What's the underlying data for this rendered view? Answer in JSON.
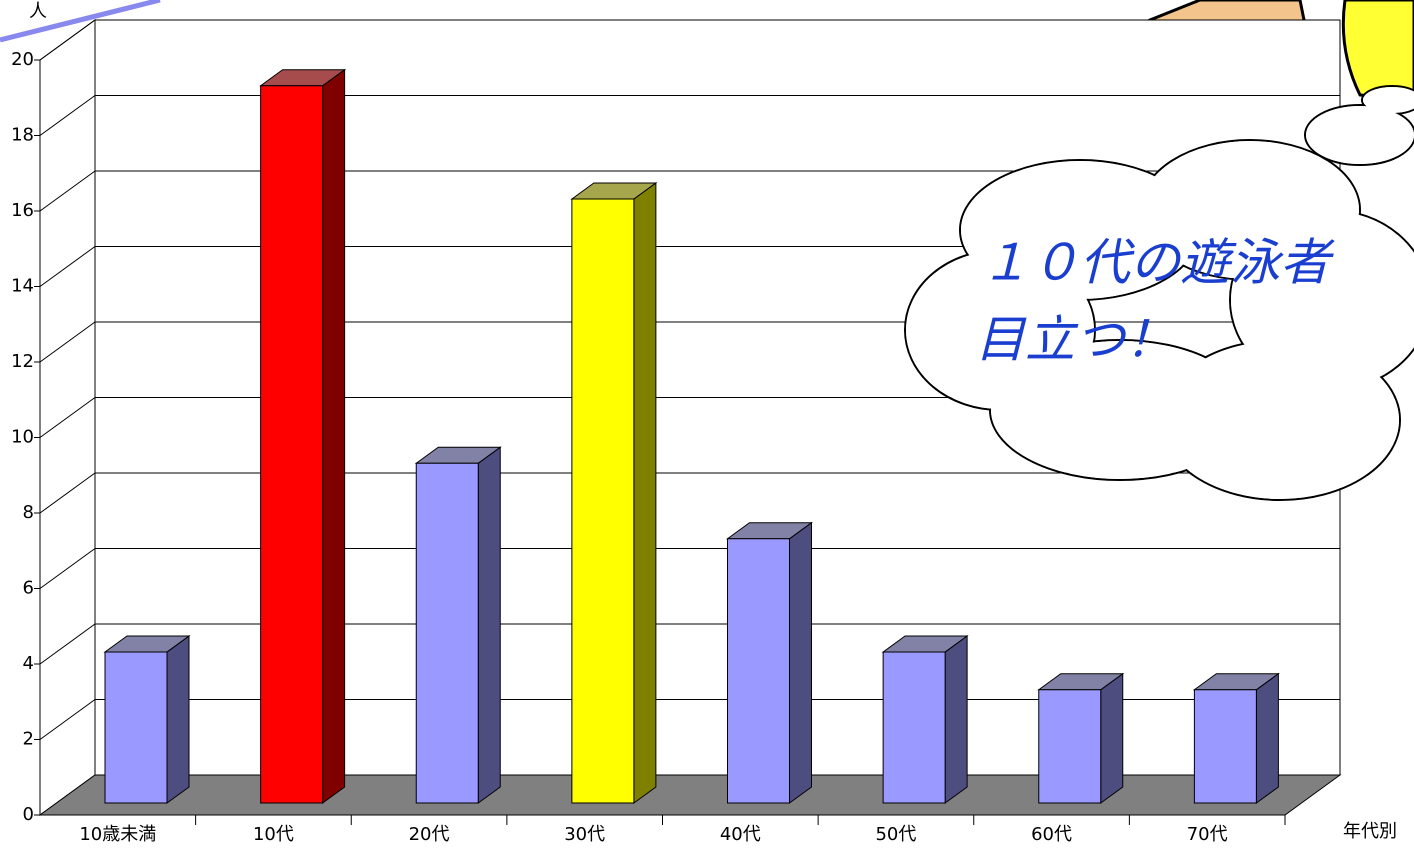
{
  "chart_data": {
    "type": "bar3d",
    "y_axis_label": "人",
    "x_axis_label": "年代別",
    "categories": [
      "10歳未満",
      "10代",
      "20代",
      "30代",
      "40代",
      "50代",
      "60代",
      "70代"
    ],
    "values": [
      4,
      19,
      9,
      16,
      7,
      4,
      3,
      3
    ],
    "colors": [
      "#9999ff",
      "#ff0000",
      "#9999ff",
      "#ffff00",
      "#9999ff",
      "#9999ff",
      "#9999ff",
      "#9999ff"
    ],
    "ylim": [
      0,
      20
    ],
    "yticks": [
      0,
      2,
      4,
      6,
      8,
      10,
      12,
      14,
      16,
      18,
      20
    ],
    "grid": true,
    "annotation": [
      "１０代の遊泳者",
      "目立つ！"
    ]
  }
}
